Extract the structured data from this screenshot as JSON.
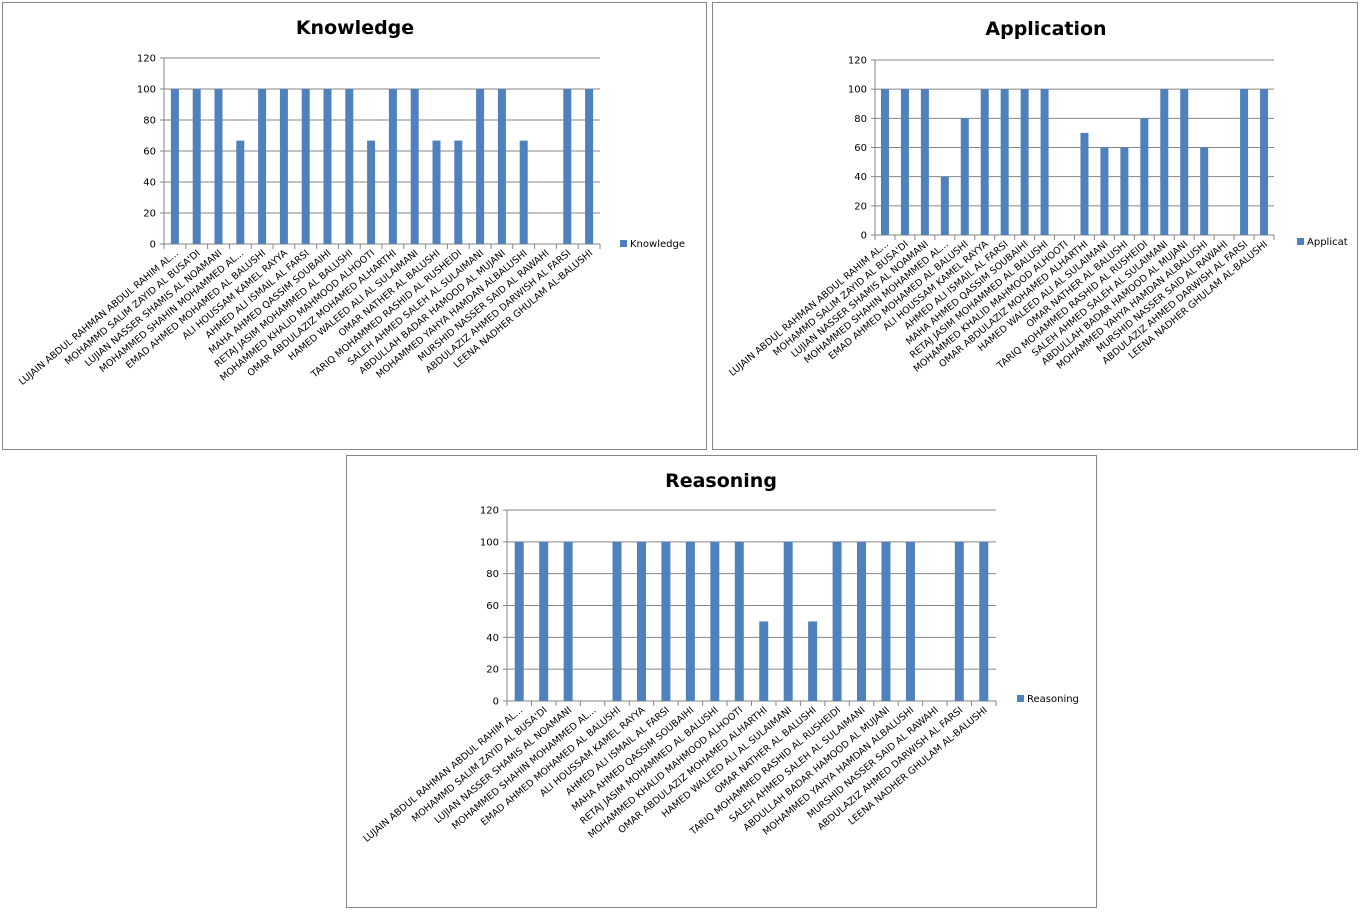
{
  "chart_data": [
    {
      "type": "bar",
      "title": "Knowledge",
      "xlabel": "",
      "ylabel": "",
      "ylim": [
        0,
        120
      ],
      "yticks": [
        "0",
        "20",
        "40",
        "60",
        "80",
        "100",
        "120"
      ],
      "grid": true,
      "legend": "right",
      "categories": [
        "LUJAIN ABDUL RAHMAN ABDUL RAHIM AL...",
        "MOHAMMD SALIM ZAYID AL BUSA'DI",
        "LUJIAN NASSER SHAMIS AL NOAMANI",
        "MOHAMMED SHAHIN MOHAMMED AL...",
        "EMAD AHMED MOHAMED AL BALUSHI",
        "ALI HOUSSAM KAMEL RAYYA",
        "AHMED ALI ISMAIL AL FARSI",
        "MAHA AHMED QASSIM SOUBAIHI",
        "RETAJ JASIM MOHAMMED AL BALUSHI",
        "MOHAMMED KHALID MAHMOOD ALHOOTI",
        "OMAR ABDULAZIZ MOHAMED ALHARTHI",
        "HAMED WALEED ALI AL SULAIMANI",
        "OMAR NATHER AL BALUSHI",
        "TARIQ MOHAMMED RASHID AL RUSHEIDI",
        "SALEH AHMED SALEH AL SULAIMANI",
        "ABDULLAH BADAR HAMOOD AL MUJANI",
        "MOHAMMED YAHYA HAMDAN ALBALUSHI",
        "MURSHID NASSER SAID AL RAWAHI",
        "ABDULAZIZ AHMED DARWISH AL FARSI",
        "LEENA NADHER GHULAM AL-BALUSHI"
      ],
      "series": [
        {
          "name": "Knowledge",
          "color": "#4F81BD",
          "values": [
            100,
            100,
            100,
            66.7,
            100,
            100,
            100,
            100,
            100,
            66.7,
            100,
            100,
            66.7,
            66.7,
            100,
            100,
            66.7,
            0,
            100,
            100
          ]
        }
      ]
    },
    {
      "type": "bar",
      "title": "Application",
      "xlabel": "",
      "ylabel": "",
      "ylim": [
        0,
        120
      ],
      "yticks": [
        "0",
        "20",
        "40",
        "60",
        "80",
        "100",
        "120"
      ],
      "grid": true,
      "legend": "right",
      "categories": [
        "LUJAIN ABDUL RAHMAN ABDUL RAHIM AL...",
        "MOHAMMD SALIM ZAYID AL BUSA'DI",
        "LUJIAN NASSER SHAMIS AL NOAMANI",
        "MOHAMMED SHAHIN MOHAMMED AL...",
        "EMAD AHMED MOHAMED AL BALUSHI",
        "ALI HOUSSAM KAMEL RAYYA",
        "AHMED ALI ISMAIL AL FARSI",
        "MAHA AHMED QASSIM SOUBAIHI",
        "RETAJ JASIM MOHAMMED AL BALUSHI",
        "MOHAMMED KHALID MAHMOOD ALHOOTI",
        "OMAR ABDULAZIZ MOHAMED ALHARTHI",
        "HAMED WALEED ALI AL SULAIMANI",
        "OMAR NATHER AL BALUSHI",
        "TARIQ MOHAMMED RASHID AL RUSHEIDI",
        "SALEH AHMED SALEH AL SULAIMANI",
        "ABDULLAH BADAR HAMOOD AL MUJANI",
        "MOHAMMED YAHYA HAMDAN ALBALUSHI",
        "MURSHID NASSER SAID AL RAWAHI",
        "ABDULAZIZ AHMED DARWISH AL FARSI",
        "LEENA NADHER GHULAM AL-BALUSHI"
      ],
      "series": [
        {
          "name": "Applicat",
          "color": "#4F81BD",
          "values": [
            100,
            100,
            100,
            40,
            80,
            100,
            100,
            100,
            100,
            0,
            70,
            60,
            60,
            80,
            100,
            100,
            60,
            0,
            100,
            100
          ]
        }
      ]
    },
    {
      "type": "bar",
      "title": "Reasoning",
      "xlabel": "",
      "ylabel": "",
      "ylim": [
        0,
        120
      ],
      "yticks": [
        "0",
        "20",
        "40",
        "60",
        "80",
        "100",
        "120"
      ],
      "grid": true,
      "legend": "right",
      "categories": [
        "LUJAIN ABDUL RAHMAN ABDUL RAHIM AL...",
        "MOHAMMD SALIM ZAYID AL BUSA'DI",
        "LUJIAN NASSER SHAMIS AL NOAMANI",
        "MOHAMMED SHAHIN MOHAMMED AL...",
        "EMAD AHMED MOHAMED AL BALUSHI",
        "ALI HOUSSAM KAMEL RAYYA",
        "AHMED ALI ISMAIL AL FARSI",
        "MAHA AHMED QASSIM SOUBAIHI",
        "RETAJ JASIM MOHAMMED AL BALUSHI",
        "MOHAMMED KHALID MAHMOOD ALHOOTI",
        "OMAR ABDULAZIZ MOHAMED ALHARTHI",
        "HAMED WALEED ALI AL SULAIMANI",
        "OMAR NATHER AL BALUSHI",
        "TARIQ MOHAMMED RASHID AL RUSHEIDI",
        "SALEH AHMED SALEH AL SULAIMANI",
        "ABDULLAH BADAR HAMOOD AL MUJANI",
        "MOHAMMED YAHYA HAMDAN ALBALUSHI",
        "MURSHID NASSER SAID AL RAWAHI",
        "ABDULAZIZ AHMED DARWISH AL FARSI",
        "LEENA NADHER GHULAM AL-BALUSHI"
      ],
      "series": [
        {
          "name": "Reasoning",
          "color": "#4F81BD",
          "values": [
            100,
            100,
            100,
            0,
            100,
            100,
            100,
            100,
            100,
            100,
            50,
            100,
            50,
            100,
            100,
            100,
            100,
            0,
            100,
            100
          ]
        }
      ]
    }
  ]
}
